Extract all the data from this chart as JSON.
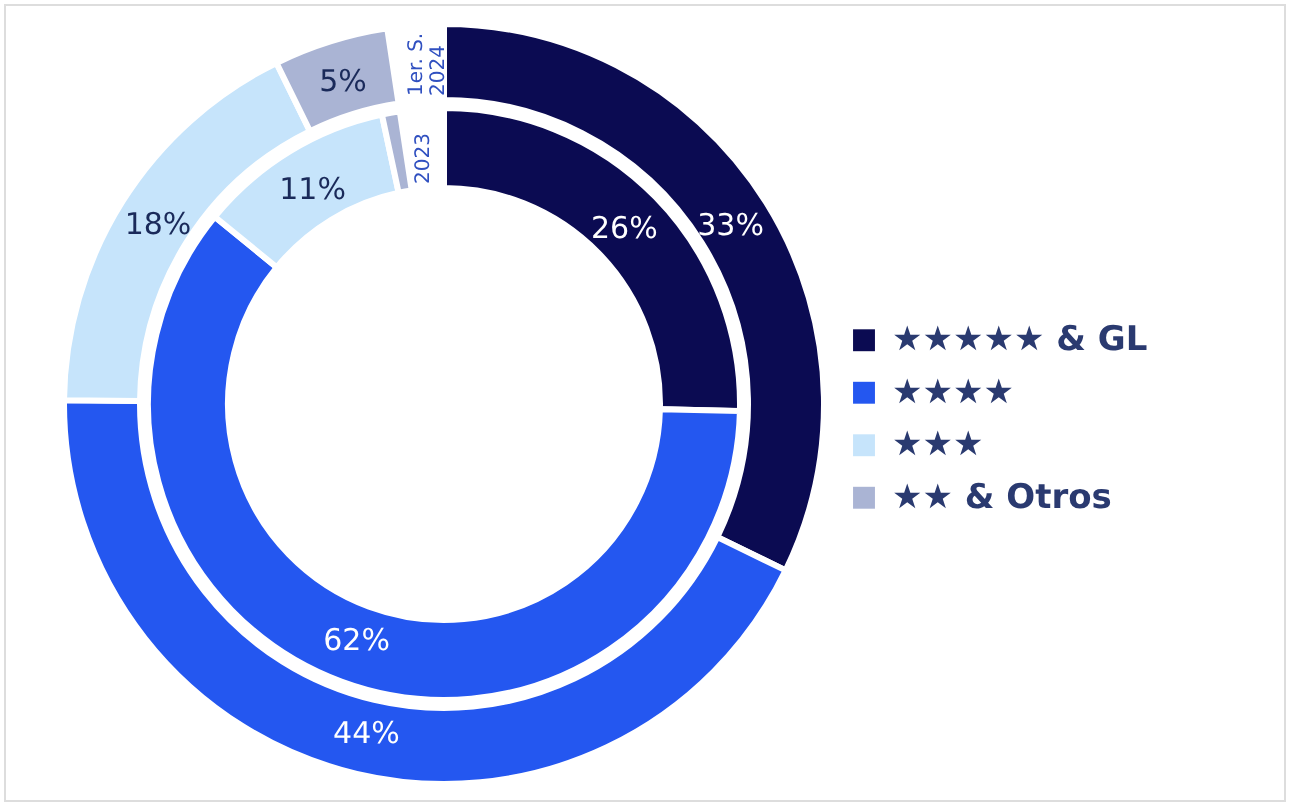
{
  "chart_data": {
    "type": "donut",
    "categories": [
      "★★★★★ & GL",
      "★★★★",
      "★★★",
      "★★ & Otros"
    ],
    "colors": [
      "#0b0b52",
      "#2457f0",
      "#c6e4fb",
      "#aab4d4"
    ],
    "series": [
      {
        "name": "1er. S.\n2024",
        "values": [
          33,
          44,
          18,
          5
        ],
        "value_labels": [
          "33%",
          "44%",
          "18%",
          "5%"
        ]
      },
      {
        "name": "2023",
        "values": [
          26,
          62,
          11,
          1
        ],
        "value_labels": [
          "26%",
          "62%",
          "11%",
          null
        ]
      }
    ],
    "legend": "right"
  }
}
